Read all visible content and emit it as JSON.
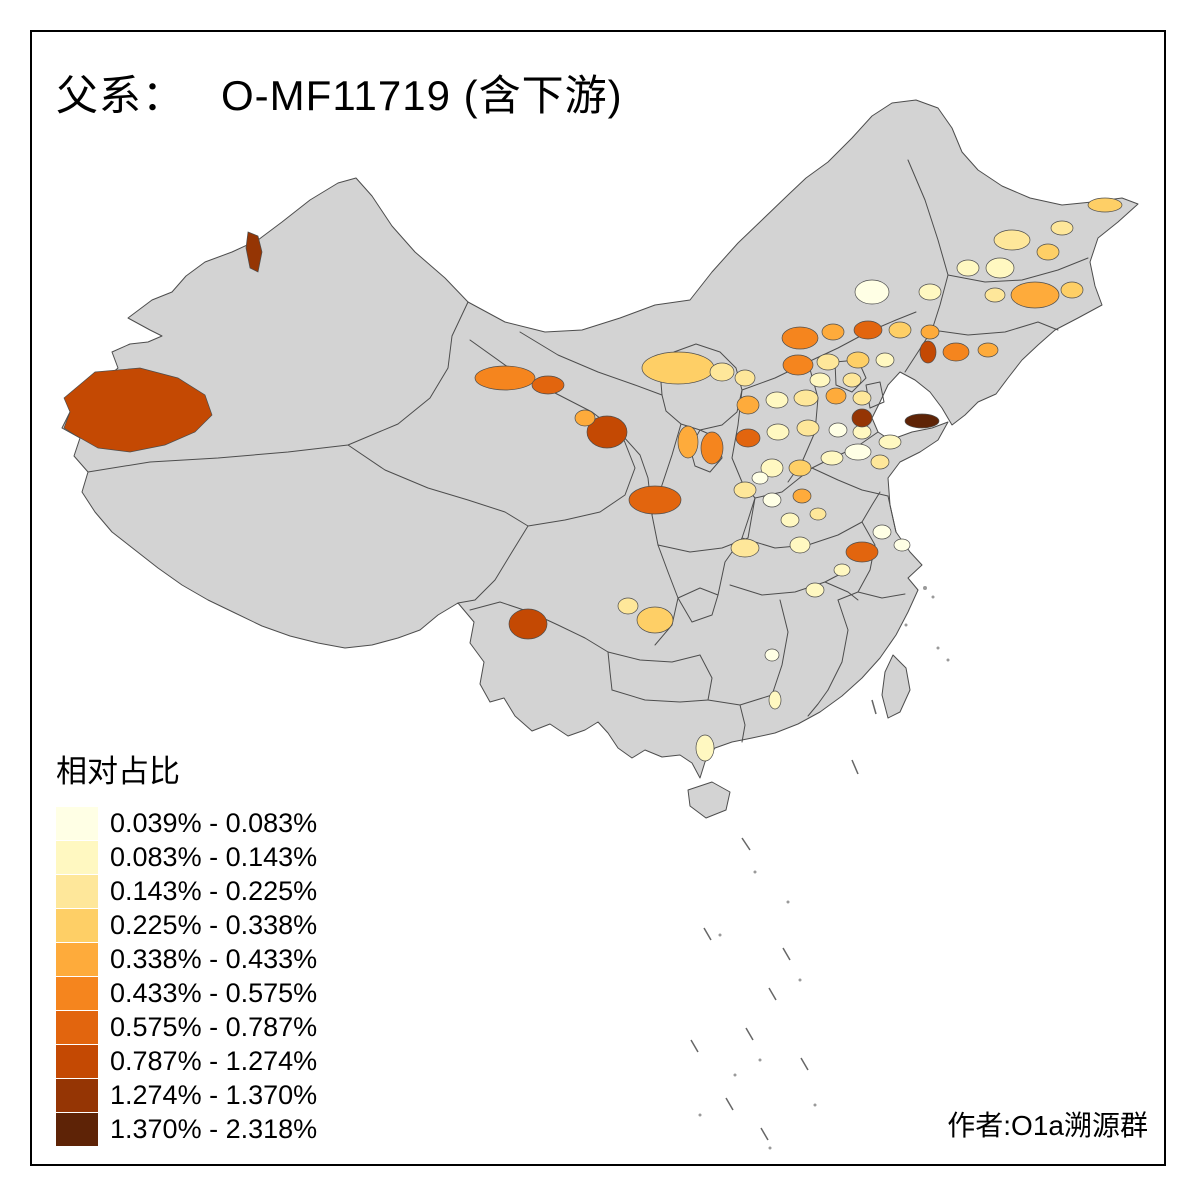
{
  "title": {
    "prefix": "父系：",
    "main": "O-MF11719 (含下游)"
  },
  "legend": {
    "title": "相对占比",
    "classes": [
      {
        "label": "0.039% - 0.083%",
        "color": "#FFFFE5"
      },
      {
        "label": "0.083% - 0.143%",
        "color": "#FFF8C1"
      },
      {
        "label": "0.143% - 0.225%",
        "color": "#FEE79A"
      },
      {
        "label": "0.225% - 0.338%",
        "color": "#FECF66"
      },
      {
        "label": "0.338% - 0.433%",
        "color": "#FEAB3B"
      },
      {
        "label": "0.433% - 0.575%",
        "color": "#F5851E"
      },
      {
        "label": "0.575% - 0.787%",
        "color": "#E2650E"
      },
      {
        "label": "0.787% - 1.274%",
        "color": "#C44903"
      },
      {
        "label": "1.274% - 1.370%",
        "color": "#953504"
      },
      {
        "label": "1.370% - 2.318%",
        "color": "#5E2306"
      }
    ]
  },
  "attribution": "作者:O1a溯源群",
  "map": {
    "land_color": "#D3D3D3",
    "border_color": "#4D4D4D",
    "background": "#FFFFFF"
  }
}
